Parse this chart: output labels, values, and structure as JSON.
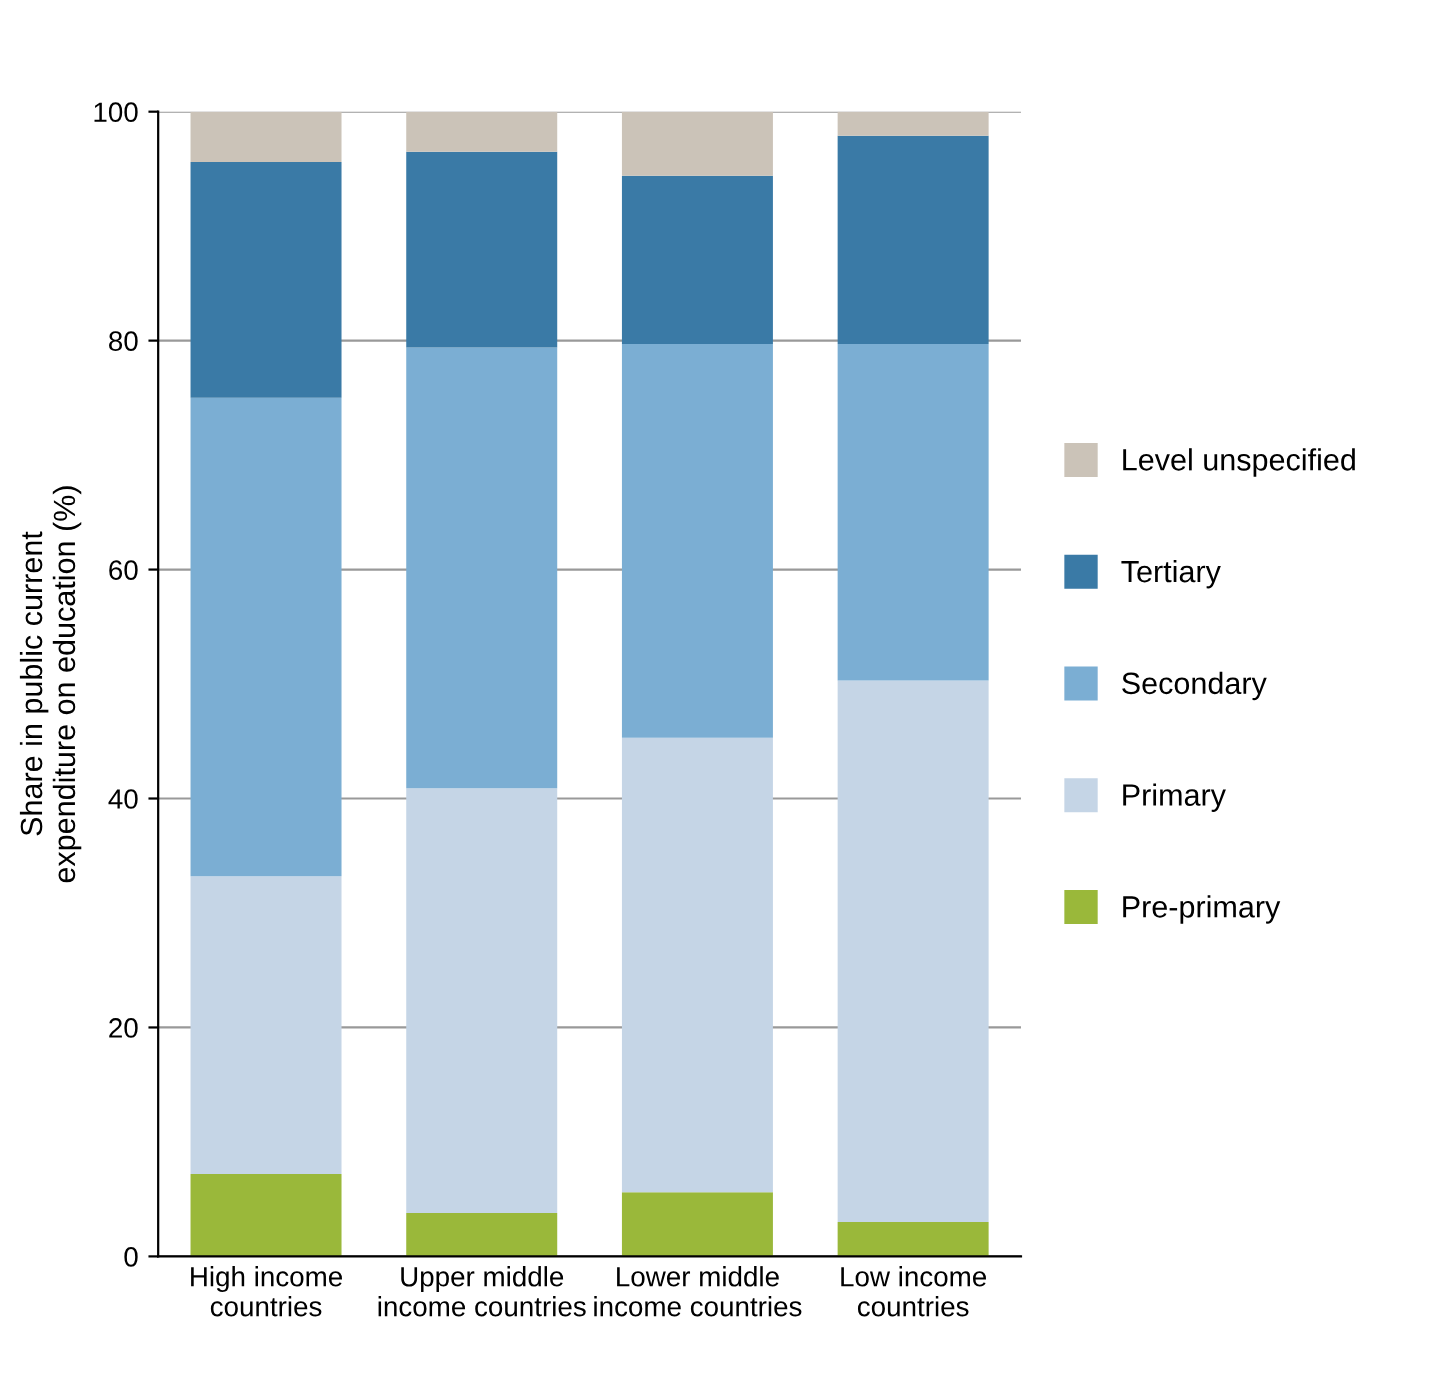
{
  "chart_data": {
    "type": "bar",
    "stacked": true,
    "ylabel": "Share in public current\nexpenditure on education (%)",
    "categories": [
      "High income\ncountries",
      "Upper middle\nincome countries",
      "Lower middle\nincome countries",
      "Low income\ncountries"
    ],
    "series": [
      {
        "name": "Pre-primary",
        "color": "#9ab83a",
        "values": [
          7.2,
          3.8,
          5.6,
          3.0
        ]
      },
      {
        "name": "Primary",
        "color": "#c5d5e6",
        "values": [
          26.0,
          37.1,
          39.7,
          47.3
        ]
      },
      {
        "name": "Secondary",
        "color": "#7baed3",
        "values": [
          41.8,
          38.5,
          34.4,
          29.4
        ]
      },
      {
        "name": "Tertiary",
        "color": "#3a7aa6",
        "values": [
          20.6,
          17.1,
          14.7,
          18.2
        ]
      },
      {
        "name": "Level unspecified",
        "color": "#cbc3b8",
        "values": [
          4.4,
          3.5,
          5.6,
          2.1
        ]
      }
    ],
    "ylim": [
      0,
      100
    ],
    "yticks": [
      0,
      20,
      40,
      60,
      80,
      100
    ],
    "grid": "y",
    "legend": "right"
  }
}
